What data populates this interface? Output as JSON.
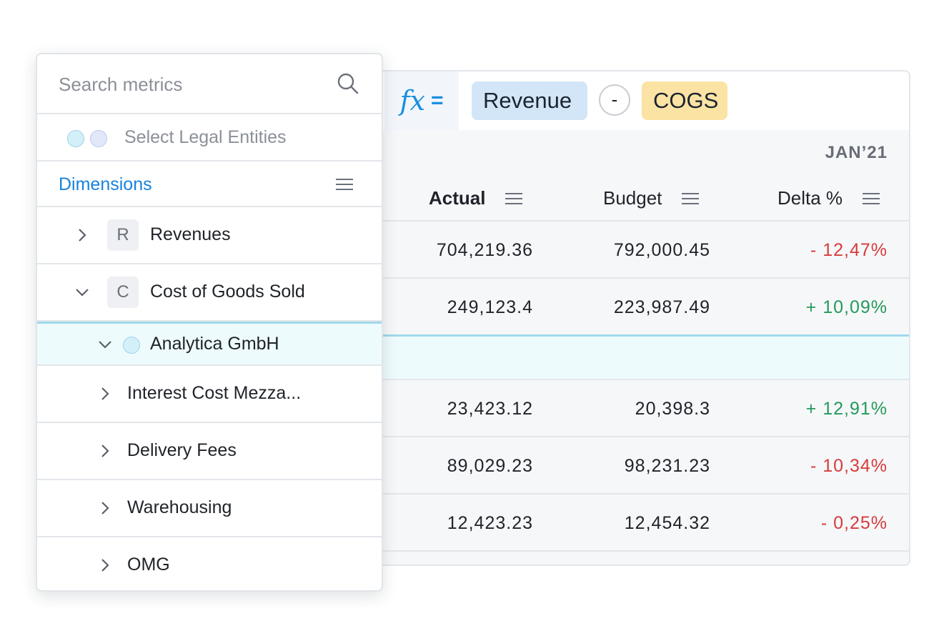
{
  "formula": {
    "fx_label": "fx",
    "equals": "=",
    "operand_a": "Revenue",
    "operator": "-",
    "operand_b": "COGS"
  },
  "table": {
    "period": "JAN’21",
    "columns": [
      "Actual",
      "Budget",
      "Delta %"
    ],
    "rows": [
      {
        "actual": "704,219.36",
        "budget": "792,000.45",
        "delta": "- 12,47%",
        "trend": "negative"
      },
      {
        "actual": "249,123.4",
        "budget": "223,987.49",
        "delta": "+ 10,09%",
        "trend": "positive"
      },
      {
        "actual": "",
        "budget": "",
        "delta": "",
        "trend": "none"
      },
      {
        "actual": "23,423.12",
        "budget": "20,398.3",
        "delta": "+ 12,91%",
        "trend": "positive"
      },
      {
        "actual": "89,029.23",
        "budget": "98,231.23",
        "delta": "- 10,34%",
        "trend": "negative"
      },
      {
        "actual": "12,423.23",
        "budget": "12,454.32",
        "delta": "- 0,25%",
        "trend": "negative"
      }
    ]
  },
  "panel": {
    "search_placeholder": "Search metrics",
    "legal_entities": "Select Legal Entities",
    "dimensions": "Dimensions",
    "items": [
      {
        "badge": "R",
        "label": "Revenues",
        "expanded": false
      },
      {
        "badge": "C",
        "label": "Cost of Goods Sold",
        "expanded": true
      },
      {
        "badge": "",
        "label": "Analytica GmbH",
        "expanded": true
      },
      {
        "badge": "",
        "label": "Interest Cost Mezza...",
        "expanded": false
      },
      {
        "badge": "",
        "label": "Delivery Fees",
        "expanded": false
      },
      {
        "badge": "",
        "label": "Warehousing",
        "expanded": false
      },
      {
        "badge": "",
        "label": "OMG",
        "expanded": false
      }
    ]
  },
  "colors": {
    "accent": "#1a8fe0",
    "negative": "#d63c3c",
    "positive": "#239a5b",
    "revenue_chip": "#d3e6f8",
    "cogs_chip": "#fbe3a4",
    "highlight": "#eefbfd"
  },
  "icons": {
    "search": "search-icon",
    "menu": "hamburger-icon",
    "expand": "chevron-right-icon",
    "collapse": "chevron-down-icon"
  }
}
